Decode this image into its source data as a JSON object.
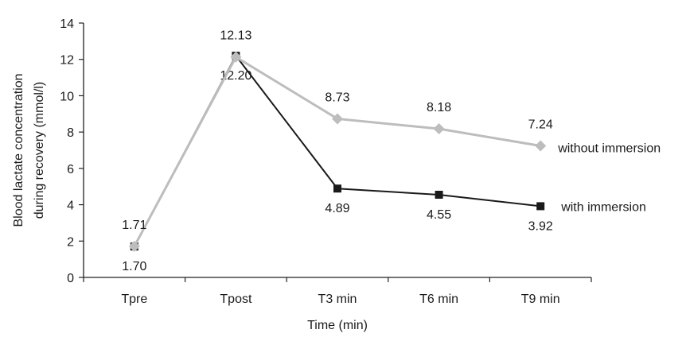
{
  "chart_data": {
    "type": "line",
    "title": "",
    "xlabel": "Time (min)",
    "ylabel_lines": [
      "Blood lactate concentration",
      "during recovery  (mmol/l)"
    ],
    "categories": [
      "Tpre",
      "Tpost",
      "T3 min",
      "T6 min",
      "T9 min"
    ],
    "ylim": [
      0,
      14
    ],
    "yticks": [
      0,
      2,
      4,
      6,
      8,
      10,
      12,
      14
    ],
    "grid": false,
    "series": [
      {
        "name": "with immersion",
        "marker": "square",
        "color": "#1a1a1a",
        "values": [
          1.7,
          12.2,
          4.89,
          4.55,
          3.92
        ],
        "labels": [
          "1.70",
          "12.20",
          "4.89",
          "4.55",
          "3.92"
        ],
        "label_position": "below"
      },
      {
        "name": "without immersion",
        "marker": "diamond",
        "color": "#bdbdbd",
        "values": [
          1.71,
          12.13,
          8.73,
          8.18,
          7.24
        ],
        "labels": [
          "1.71",
          "12.13",
          "8.73",
          "8.18",
          "7.24"
        ],
        "label_position": "above"
      }
    ],
    "legend": "inline-right"
  }
}
